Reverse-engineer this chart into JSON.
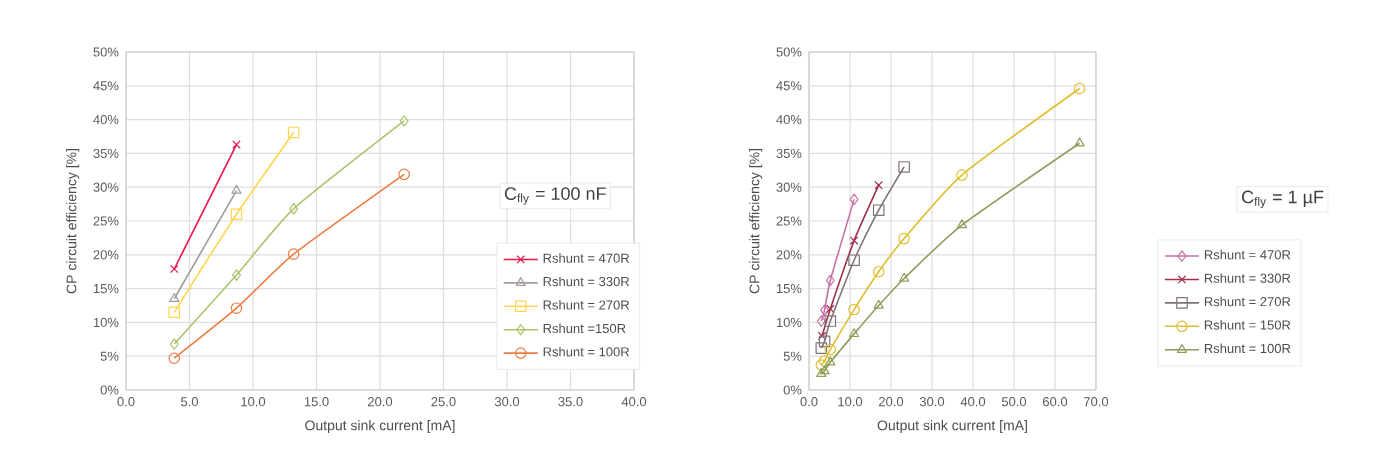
{
  "chart_data": [
    {
      "type": "line",
      "xlabel": "Output sink current [mA]",
      "ylabel": "CP circuit efficiency [%]",
      "xlim": [
        0,
        40
      ],
      "ylim": [
        0,
        50
      ],
      "xticks": [
        {
          "value": 0,
          "label": "0.0"
        },
        {
          "value": 5,
          "label": "5.0"
        },
        {
          "value": 10,
          "label": "10.0"
        },
        {
          "value": 15,
          "label": "15.0"
        },
        {
          "value": 20,
          "label": "20.0"
        },
        {
          "value": 25,
          "label": "25.0"
        },
        {
          "value": 30,
          "label": "30.0"
        },
        {
          "value": 35,
          "label": "35.0"
        },
        {
          "value": 40,
          "label": "40.0"
        }
      ],
      "yticks": [
        {
          "value": 0,
          "label": "0%"
        },
        {
          "value": 5,
          "label": "5%"
        },
        {
          "value": 10,
          "label": "10%"
        },
        {
          "value": 15,
          "label": "15%"
        },
        {
          "value": 20,
          "label": "20%"
        },
        {
          "value": 25,
          "label": "25%"
        },
        {
          "value": 30,
          "label": "30%"
        },
        {
          "value": 35,
          "label": "35%"
        },
        {
          "value": 40,
          "label": "40%"
        },
        {
          "value": 45,
          "label": "45%"
        },
        {
          "value": 50,
          "label": "50%"
        }
      ],
      "grid": true,
      "legend": "bottom right",
      "line_style": "solid",
      "annotations": [
        "C$_{fly}$ = 100 nF"
      ],
      "series": [
        {
          "name": "Rshunt = 470R",
          "color": "#e8174a",
          "marker": "cross",
          "x": [
            3.8,
            8.7
          ],
          "values": [
            17.9,
            36.3
          ]
        },
        {
          "name": "Rshunt = 330R",
          "color": "#a39a9e",
          "marker": "triangle",
          "x": [
            3.8,
            8.7
          ],
          "values": [
            13.5,
            29.5
          ]
        },
        {
          "name": "Rshunt = 270R",
          "color": "#ffd54f",
          "marker": "square",
          "x": [
            3.8,
            8.7,
            13.2
          ],
          "values": [
            11.5,
            26,
            38.1
          ]
        },
        {
          "name": "Rshunt =150R",
          "color": "#a9c46a",
          "marker": "diamond",
          "x": [
            3.8,
            8.7,
            13.2,
            21.9
          ],
          "values": [
            6.8,
            17,
            26.8,
            39.8
          ]
        },
        {
          "name": "Rshunt = 100R",
          "color": "#ee7d43",
          "marker": "circle",
          "x": [
            3.8,
            8.7,
            13.2,
            21.9
          ],
          "values": [
            4.7,
            12.1,
            20.1,
            31.9
          ]
        }
      ]
    },
    {
      "type": "line",
      "xlabel": "Output sink current [mA]",
      "ylabel": "CP circuit efficiency [%]",
      "xlim": [
        0,
        70
      ],
      "ylim": [
        0,
        50
      ],
      "xticks": [
        {
          "value": 0,
          "label": "0.0"
        },
        {
          "value": 10,
          "label": "10.0"
        },
        {
          "value": 20,
          "label": "20.0"
        },
        {
          "value": 30,
          "label": "30.0"
        },
        {
          "value": 40,
          "label": "40.0"
        },
        {
          "value": 50,
          "label": "50.0"
        },
        {
          "value": 60,
          "label": "60.0"
        },
        {
          "value": 70,
          "label": "70.0"
        }
      ],
      "yticks": [
        {
          "value": 0,
          "label": "0%"
        },
        {
          "value": 5,
          "label": "5%"
        },
        {
          "value": 10,
          "label": "10%"
        },
        {
          "value": 15,
          "label": "15%"
        },
        {
          "value": 20,
          "label": "20%"
        },
        {
          "value": 25,
          "label": "25%"
        },
        {
          "value": 30,
          "label": "30%"
        },
        {
          "value": 35,
          "label": "35%"
        },
        {
          "value": 40,
          "label": "40%"
        },
        {
          "value": 45,
          "label": "45%"
        },
        {
          "value": 50,
          "label": "50%"
        }
      ],
      "grid": true,
      "legend": "right",
      "line_style": "solid",
      "annotations": [
        "C$_{fly}$ = 1 µF"
      ],
      "series": [
        {
          "name": "Rshunt = 470R",
          "color": "#c86fa8",
          "marker": "diamond",
          "x": [
            3,
            3.8,
            5.2,
            11
          ],
          "values": [
            10.2,
            11.8,
            16.2,
            28.2
          ]
        },
        {
          "name": "Rshunt = 330R",
          "color": "#a0304a",
          "marker": "cross",
          "x": [
            3.2,
            5.2,
            11,
            17
          ],
          "values": [
            8,
            12,
            22.1,
            30.3
          ]
        },
        {
          "name": "Rshunt = 270R",
          "color": "#7f7377",
          "marker": "square",
          "x": [
            3,
            3.8,
            5.2,
            11,
            17,
            23.2
          ],
          "values": [
            6.2,
            7.2,
            10.2,
            19.2,
            26.6,
            33
          ]
        },
        {
          "name": "Rshunt = 150R",
          "color": "#e0bd2e",
          "marker": "circle",
          "x": [
            3,
            3.8,
            5.2,
            11,
            17,
            23.2,
            37.3,
            66
          ],
          "values": [
            3.7,
            4.3,
            6,
            11.9,
            17.5,
            22.4,
            31.8,
            44.6
          ]
        },
        {
          "name": "Rshunt = 100R",
          "color": "#8b9e5a",
          "marker": "triangle",
          "x": [
            3,
            3.8,
            5.2,
            11,
            17,
            23.2,
            37.3,
            66
          ],
          "values": [
            2.4,
            2.8,
            4.1,
            8.3,
            12.5,
            16.5,
            24.4,
            36.5
          ]
        }
      ]
    }
  ]
}
